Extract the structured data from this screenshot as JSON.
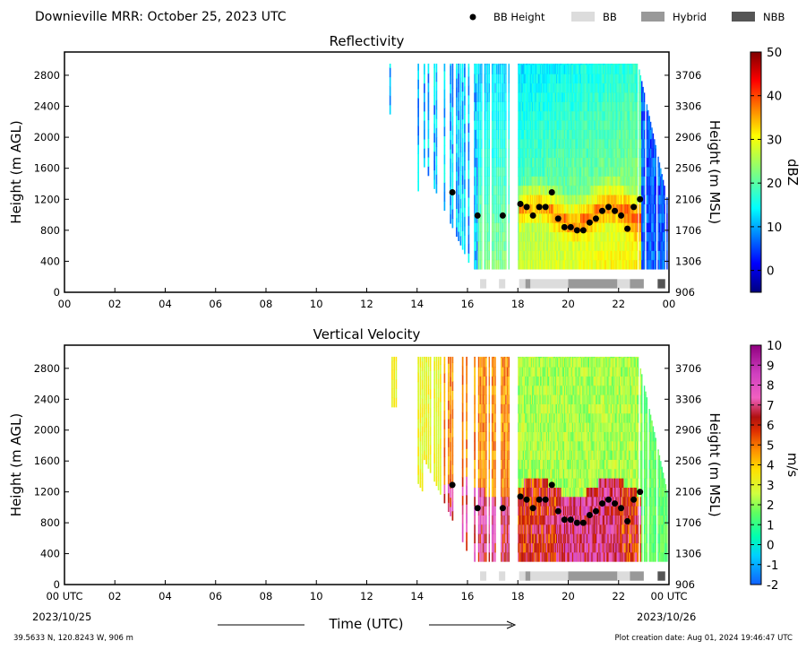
{
  "header": {
    "title": "Downieville MRR:  October 25, 2023 UTC",
    "legend": [
      {
        "label": "BB Height",
        "kind": "dot",
        "color": "#000000"
      },
      {
        "label": "BB",
        "kind": "swatch",
        "color": "#dcdcdc"
      },
      {
        "label": "Hybrid",
        "kind": "swatch",
        "color": "#999999"
      },
      {
        "label": "NBB",
        "kind": "swatch",
        "color": "#555555"
      }
    ]
  },
  "footer": {
    "location": "39.5633 N, 120.8243 W, 906 m",
    "creation": "Plot creation date: Aug 01, 2024 19:46:47 UTC",
    "xlabel": "Time (UTC)",
    "start_date": "2023/10/25",
    "end_date": "2023/10/26"
  },
  "chart_data": [
    {
      "type": "heatmap",
      "title": "Reflectivity",
      "xlabel": "",
      "ylabel": "Height (m AGL)",
      "ylabel_right": "Height (m MSL)",
      "xlim": [
        0,
        24
      ],
      "ylim": [
        0,
        3100
      ],
      "x_ticks": [
        "00",
        "02",
        "04",
        "06",
        "08",
        "10",
        "12",
        "14",
        "16",
        "18",
        "20",
        "22",
        "00"
      ],
      "y_ticks": [
        0,
        400,
        800,
        1200,
        1600,
        2000,
        2400,
        2800
      ],
      "y_ticks_right": [
        906,
        1306,
        1706,
        2106,
        2506,
        2906,
        3306,
        3706
      ],
      "colorbar": {
        "label": "dBZ",
        "min": -5,
        "max": 50,
        "ticks": [
          0,
          10,
          20,
          30,
          40,
          50
        ],
        "colormap": "jet"
      },
      "bb_height": {
        "x": [
          15.4,
          16.4,
          17.4,
          18.1,
          18.35,
          18.6,
          18.85,
          19.1,
          19.35,
          19.6,
          19.85,
          20.1,
          20.35,
          20.6,
          20.85,
          21.1,
          21.35,
          21.6,
          21.85,
          22.1,
          22.35,
          22.6,
          22.85
        ],
        "y": [
          1290,
          990,
          990,
          1140,
          1100,
          990,
          1100,
          1100,
          1290,
          950,
          840,
          840,
          800,
          800,
          900,
          950,
          1050,
          1100,
          1050,
          990,
          820,
          1100,
          1200
        ]
      },
      "bb_classification": [
        {
          "class": "BB",
          "start": 16.5,
          "end": 16.75
        },
        {
          "class": "BB",
          "start": 17.25,
          "end": 17.5
        },
        {
          "class": "BB",
          "start": 18.05,
          "end": 18.3
        },
        {
          "class": "Hybrid",
          "start": 18.3,
          "end": 18.5
        },
        {
          "class": "BB",
          "start": 18.5,
          "end": 20.0
        },
        {
          "class": "Hybrid",
          "start": 20.0,
          "end": 21.95
        },
        {
          "class": "BB",
          "start": 21.95,
          "end": 22.45
        },
        {
          "class": "Hybrid",
          "start": 22.45,
          "end": 23.0
        },
        {
          "class": "NBB",
          "start": 23.55,
          "end": 23.85
        }
      ]
    },
    {
      "type": "heatmap",
      "title": "Vertical Velocity",
      "xlabel": "Time (UTC)",
      "ylabel": "Height (m AGL)",
      "ylabel_right": "Height (m MSL)",
      "xlim": [
        0,
        24
      ],
      "ylim": [
        0,
        3100
      ],
      "x_ticks": [
        "00 UTC",
        "02",
        "04",
        "06",
        "08",
        "10",
        "12",
        "14",
        "16",
        "18",
        "20",
        "22",
        "00 UTC"
      ],
      "y_ticks": [
        0,
        400,
        800,
        1200,
        1600,
        2000,
        2400,
        2800
      ],
      "y_ticks_right": [
        906,
        1306,
        1706,
        2106,
        2506,
        2906,
        3306,
        3706
      ],
      "colorbar": {
        "label": "m/s",
        "min": -2,
        "max": 10,
        "ticks": [
          -2,
          -1,
          0,
          1,
          2,
          3,
          4,
          5,
          6,
          7,
          8,
          9,
          10
        ],
        "colormap": "velocity"
      },
      "bb_height": {
        "x": [
          15.4,
          16.4,
          17.4,
          18.1,
          18.35,
          18.6,
          18.85,
          19.1,
          19.35,
          19.6,
          19.85,
          20.1,
          20.35,
          20.6,
          20.85,
          21.1,
          21.35,
          21.6,
          21.85,
          22.1,
          22.35,
          22.6,
          22.85
        ],
        "y": [
          1290,
          990,
          990,
          1140,
          1100,
          990,
          1100,
          1100,
          1290,
          950,
          840,
          840,
          800,
          800,
          900,
          950,
          1050,
          1100,
          1050,
          990,
          820,
          1100,
          1200
        ]
      },
      "bb_classification": [
        {
          "class": "BB",
          "start": 16.5,
          "end": 16.75
        },
        {
          "class": "BB",
          "start": 17.25,
          "end": 17.5
        },
        {
          "class": "BB",
          "start": 18.05,
          "end": 18.3
        },
        {
          "class": "Hybrid",
          "start": 18.3,
          "end": 18.5
        },
        {
          "class": "BB",
          "start": 18.5,
          "end": 20.0
        },
        {
          "class": "Hybrid",
          "start": 20.0,
          "end": 21.95
        },
        {
          "class": "BB",
          "start": 21.95,
          "end": 22.45
        },
        {
          "class": "Hybrid",
          "start": 22.45,
          "end": 23.0
        },
        {
          "class": "NBB",
          "start": 23.55,
          "end": 23.85
        }
      ]
    }
  ]
}
